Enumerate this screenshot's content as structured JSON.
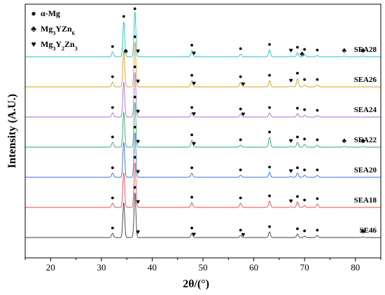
{
  "chart_data": {
    "type": "line",
    "xlabel": "2θ/(°)",
    "ylabel": "Intensity (A.U.)",
    "xlim": [
      15,
      85
    ],
    "x_ticks": [
      20,
      30,
      40,
      50,
      60,
      70,
      80
    ],
    "y_ticks_shown": false,
    "grid": false,
    "legend": {
      "placement": "top-left",
      "entries": [
        {
          "symbol": "●",
          "phase": "α-Mg",
          "label_html": "α-Mg"
        },
        {
          "symbol": "♣",
          "phase": "Mg3YZn6",
          "label_html": "Mg<tspan baseline-shift='sub' font-size='8'>3</tspan>YZn<tspan baseline-shift='sub' font-size='8'>6</tspan>"
        },
        {
          "symbol": "♥",
          "phase": "Mg3Y2Zn3",
          "label_html": "Mg<tspan baseline-shift='sub' font-size='8'>3</tspan>Y<tspan baseline-shift='sub' font-size='8'>2</tspan>Zn<tspan baseline-shift='sub' font-size='8'>3</tspan>"
        }
      ]
    },
    "series": [
      {
        "name": "SEA28",
        "color": "#1cc4c4",
        "offset": 6,
        "peaks": [
          [
            32.2,
            0.35
          ],
          [
            34.4,
            2.5
          ],
          [
            36.6,
            3.2
          ],
          [
            47.8,
            0.45
          ],
          [
            57.4,
            0.2
          ],
          [
            63.1,
            0.5
          ],
          [
            67.3,
            0.05
          ],
          [
            68.6,
            0.3
          ],
          [
            70.0,
            0.15
          ],
          [
            72.5,
            0.1
          ],
          [
            77.8,
            0.05
          ],
          [
            81.5,
            0.05
          ]
        ],
        "markers": [
          {
            "x": 32.2,
            "symbol": "●"
          },
          {
            "x": 34.4,
            "symbol": "●"
          },
          {
            "x": 34.8,
            "symbol": "♣",
            "level": "low"
          },
          {
            "x": 36.6,
            "symbol": "●"
          },
          {
            "x": 37.2,
            "symbol": "♥"
          },
          {
            "x": 47.8,
            "symbol": "●"
          },
          {
            "x": 48.2,
            "symbol": "♥",
            "level": "low"
          },
          {
            "x": 57.4,
            "symbol": "●"
          },
          {
            "x": 63.1,
            "symbol": "●"
          },
          {
            "x": 67.3,
            "symbol": "♥"
          },
          {
            "x": 68.6,
            "symbol": "●"
          },
          {
            "x": 69.5,
            "symbol": "♣",
            "level": "low"
          },
          {
            "x": 70.0,
            "symbol": "●"
          },
          {
            "x": 72.5,
            "symbol": "●"
          },
          {
            "x": 77.8,
            "symbol": "♣"
          },
          {
            "x": 81.5,
            "symbol": "♣"
          }
        ]
      },
      {
        "name": "SEA26",
        "color": "#d4a017",
        "offset": 5,
        "peaks": [
          [
            32.2,
            0.35
          ],
          [
            34.4,
            2.5
          ],
          [
            36.6,
            3.2
          ],
          [
            47.8,
            0.45
          ],
          [
            57.4,
            0.35
          ],
          [
            63.1,
            0.45
          ],
          [
            67.3,
            0.05
          ],
          [
            68.6,
            0.6
          ],
          [
            70.0,
            0.15
          ],
          [
            72.5,
            0.15
          ]
        ],
        "markers": [
          {
            "x": 32.2,
            "symbol": "●"
          },
          {
            "x": 36.6,
            "symbol": "●"
          },
          {
            "x": 37.2,
            "symbol": "♥"
          },
          {
            "x": 47.8,
            "symbol": "●"
          },
          {
            "x": 48.2,
            "symbol": "♥",
            "level": "low"
          },
          {
            "x": 57.4,
            "symbol": "●"
          },
          {
            "x": 57.9,
            "symbol": "♥",
            "level": "low"
          },
          {
            "x": 63.1,
            "symbol": "●"
          },
          {
            "x": 67.3,
            "symbol": "♥"
          },
          {
            "x": 68.6,
            "symbol": "●"
          },
          {
            "x": 70.0,
            "symbol": "●"
          },
          {
            "x": 72.5,
            "symbol": "●"
          }
        ]
      },
      {
        "name": "SEA24",
        "color": "#a86ad6",
        "offset": 4,
        "peaks": [
          [
            32.2,
            0.3
          ],
          [
            34.4,
            2.5
          ],
          [
            36.6,
            3.2
          ],
          [
            47.8,
            0.3
          ],
          [
            57.4,
            0.2
          ],
          [
            63.1,
            0.3
          ],
          [
            68.6,
            0.25
          ],
          [
            70.0,
            0.15
          ],
          [
            72.5,
            0.1
          ]
        ],
        "markers": [
          {
            "x": 32.2,
            "symbol": "●"
          },
          {
            "x": 36.6,
            "symbol": "●"
          },
          {
            "x": 37.2,
            "symbol": "♥"
          },
          {
            "x": 47.8,
            "symbol": "●"
          },
          {
            "x": 48.2,
            "symbol": "♥",
            "level": "low"
          },
          {
            "x": 57.4,
            "symbol": "●"
          },
          {
            "x": 57.9,
            "symbol": "♥",
            "level": "low"
          },
          {
            "x": 63.1,
            "symbol": "●"
          },
          {
            "x": 68.6,
            "symbol": "●"
          },
          {
            "x": 70.0,
            "symbol": "●"
          },
          {
            "x": 72.5,
            "symbol": "●"
          }
        ]
      },
      {
        "name": "SEA22",
        "color": "#2ea86a",
        "offset": 3,
        "peaks": [
          [
            32.2,
            0.35
          ],
          [
            34.4,
            2.5
          ],
          [
            36.6,
            3.2
          ],
          [
            47.8,
            0.5
          ],
          [
            57.4,
            0.15
          ],
          [
            63.1,
            0.7
          ],
          [
            67.3,
            0.05
          ],
          [
            68.6,
            0.35
          ],
          [
            70.0,
            0.2
          ],
          [
            72.5,
            0.15
          ],
          [
            77.8,
            0.05
          ],
          [
            81.5,
            0.05
          ]
        ],
        "markers": [
          {
            "x": 32.2,
            "symbol": "●"
          },
          {
            "x": 36.6,
            "symbol": "●"
          },
          {
            "x": 37.2,
            "symbol": "♥"
          },
          {
            "x": 47.8,
            "symbol": "●"
          },
          {
            "x": 48.2,
            "symbol": "♥",
            "level": "low"
          },
          {
            "x": 57.4,
            "symbol": "●"
          },
          {
            "x": 63.1,
            "symbol": "●"
          },
          {
            "x": 67.3,
            "symbol": "♥"
          },
          {
            "x": 68.6,
            "symbol": "●"
          },
          {
            "x": 70.0,
            "symbol": "●"
          },
          {
            "x": 72.5,
            "symbol": "●"
          },
          {
            "x": 77.8,
            "symbol": "♣"
          },
          {
            "x": 81.5,
            "symbol": "♣"
          }
        ]
      },
      {
        "name": "SEA20",
        "color": "#2f6fd6",
        "offset": 2,
        "peaks": [
          [
            32.2,
            0.3
          ],
          [
            34.4,
            2.5
          ],
          [
            36.6,
            3.2
          ],
          [
            47.8,
            0.3
          ],
          [
            57.4,
            0.15
          ],
          [
            63.1,
            0.35
          ],
          [
            67.3,
            0.05
          ],
          [
            68.6,
            0.3
          ],
          [
            70.0,
            0.15
          ],
          [
            72.5,
            0.15
          ]
        ],
        "markers": [
          {
            "x": 32.2,
            "symbol": "●"
          },
          {
            "x": 36.6,
            "symbol": "●"
          },
          {
            "x": 37.2,
            "symbol": "♥"
          },
          {
            "x": 47.8,
            "symbol": "●"
          },
          {
            "x": 57.4,
            "symbol": "●"
          },
          {
            "x": 63.1,
            "symbol": "●"
          },
          {
            "x": 67.3,
            "symbol": "♥"
          },
          {
            "x": 68.6,
            "symbol": "●"
          },
          {
            "x": 70.0,
            "symbol": "●"
          },
          {
            "x": 72.5,
            "symbol": "●"
          }
        ]
      },
      {
        "name": "SEA18",
        "color": "#e8484a",
        "offset": 1,
        "peaks": [
          [
            32.2,
            0.3
          ],
          [
            34.4,
            2.5
          ],
          [
            36.6,
            3.2
          ],
          [
            47.8,
            0.35
          ],
          [
            57.4,
            0.3
          ],
          [
            63.1,
            0.45
          ],
          [
            67.3,
            0.05
          ],
          [
            68.6,
            0.4
          ],
          [
            70.0,
            0.15
          ],
          [
            72.5,
            0.25
          ]
        ],
        "markers": [
          {
            "x": 32.2,
            "symbol": "●"
          },
          {
            "x": 36.6,
            "symbol": "●"
          },
          {
            "x": 37.2,
            "symbol": "♥"
          },
          {
            "x": 47.8,
            "symbol": "●"
          },
          {
            "x": 57.4,
            "symbol": "●"
          },
          {
            "x": 63.1,
            "symbol": "●"
          },
          {
            "x": 67.3,
            "symbol": "♥"
          },
          {
            "x": 68.6,
            "symbol": "●"
          },
          {
            "x": 70.0,
            "symbol": "●"
          },
          {
            "x": 72.5,
            "symbol": "●"
          }
        ]
      },
      {
        "name": "SE46",
        "color": "#3c3c3c",
        "offset": 0,
        "peaks": [
          [
            32.2,
            0.3
          ],
          [
            34.4,
            2.5
          ],
          [
            36.6,
            3.2
          ],
          [
            47.8,
            0.3
          ],
          [
            57.4,
            0.15
          ],
          [
            63.1,
            0.4
          ],
          [
            68.6,
            0.25
          ],
          [
            70.0,
            0.1
          ],
          [
            72.5,
            0.15
          ],
          [
            81.5,
            0.05
          ]
        ],
        "markers": [
          {
            "x": 32.2,
            "symbol": "●"
          },
          {
            "x": 36.6,
            "symbol": "●"
          },
          {
            "x": 37.2,
            "symbol": "♥"
          },
          {
            "x": 47.8,
            "symbol": "●"
          },
          {
            "x": 48.2,
            "symbol": "♥",
            "level": "low"
          },
          {
            "x": 57.4,
            "symbol": "●"
          },
          {
            "x": 57.9,
            "symbol": "♥",
            "level": "low"
          },
          {
            "x": 63.1,
            "symbol": "●"
          },
          {
            "x": 68.6,
            "symbol": "●"
          },
          {
            "x": 70.0,
            "symbol": "●"
          },
          {
            "x": 72.5,
            "symbol": "●"
          },
          {
            "x": 81.5,
            "symbol": "♣"
          }
        ]
      }
    ]
  }
}
